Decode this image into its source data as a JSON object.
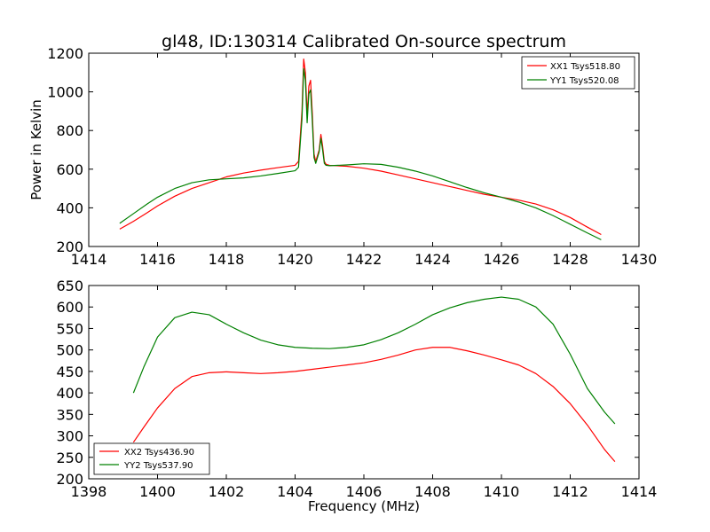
{
  "chart_data": [
    {
      "type": "line",
      "title": "gl48, ID:130314 Calibrated On-source spectrum",
      "xlabel": "",
      "ylabel": "Power in Kelvin",
      "xlim": [
        1414,
        1430
      ],
      "ylim": [
        200,
        1200
      ],
      "xticks": [
        1414,
        1416,
        1418,
        1420,
        1422,
        1424,
        1426,
        1428,
        1430
      ],
      "yticks": [
        200,
        400,
        600,
        800,
        1000,
        1200
      ],
      "grid": false,
      "legend_position": "top-right",
      "series": [
        {
          "name": "XX1 Tsys518.80",
          "color": "#ff0000",
          "x": [
            1414.9,
            1415.3,
            1415.7,
            1416.0,
            1416.5,
            1417.0,
            1417.5,
            1418.0,
            1418.5,
            1419.0,
            1419.5,
            1420.0,
            1420.1,
            1420.2,
            1420.25,
            1420.3,
            1420.35,
            1420.4,
            1420.45,
            1420.5,
            1420.55,
            1420.6,
            1420.7,
            1420.75,
            1420.8,
            1420.85,
            1420.9,
            1421.0,
            1421.5,
            1422.0,
            1422.5,
            1423.0,
            1423.5,
            1424.0,
            1424.5,
            1425.0,
            1425.5,
            1426.0,
            1426.5,
            1427.0,
            1427.5,
            1428.0,
            1428.5,
            1428.9
          ],
          "y": [
            290,
            330,
            375,
            410,
            460,
            500,
            530,
            560,
            580,
            595,
            608,
            620,
            640,
            900,
            1170,
            1100,
            880,
            1030,
            1060,
            890,
            680,
            640,
            700,
            780,
            720,
            640,
            625,
            620,
            615,
            605,
            590,
            570,
            550,
            530,
            510,
            490,
            470,
            455,
            440,
            420,
            390,
            350,
            300,
            262
          ]
        },
        {
          "name": "YY1 Tsys520.08",
          "color": "#008000",
          "x": [
            1414.9,
            1415.3,
            1415.7,
            1416.0,
            1416.5,
            1417.0,
            1417.5,
            1418.0,
            1418.5,
            1419.0,
            1419.5,
            1420.0,
            1420.1,
            1420.2,
            1420.25,
            1420.3,
            1420.35,
            1420.4,
            1420.45,
            1420.5,
            1420.55,
            1420.6,
            1420.7,
            1420.75,
            1420.8,
            1420.85,
            1420.9,
            1421.0,
            1421.5,
            1422.0,
            1422.5,
            1423.0,
            1423.5,
            1424.0,
            1424.5,
            1425.0,
            1425.5,
            1426.0,
            1426.5,
            1427.0,
            1427.5,
            1428.0,
            1428.5,
            1428.9
          ],
          "y": [
            320,
            370,
            420,
            455,
            500,
            530,
            545,
            550,
            555,
            565,
            578,
            592,
            610,
            860,
            1120,
            1060,
            840,
            990,
            1010,
            850,
            660,
            630,
            690,
            760,
            700,
            630,
            620,
            618,
            622,
            628,
            625,
            610,
            590,
            565,
            535,
            505,
            478,
            455,
            430,
            400,
            360,
            315,
            270,
            235
          ]
        }
      ]
    },
    {
      "type": "line",
      "title": "",
      "xlabel": "Frequency (MHz)",
      "ylabel": "",
      "xlim": [
        1398,
        1414
      ],
      "ylim": [
        200,
        650
      ],
      "xticks": [
        1398,
        1400,
        1402,
        1404,
        1406,
        1408,
        1410,
        1412,
        1414
      ],
      "yticks": [
        200,
        250,
        300,
        350,
        400,
        450,
        500,
        550,
        600,
        650
      ],
      "grid": false,
      "legend_position": "bottom-left",
      "series": [
        {
          "name": "XX2 Tsys436.90",
          "color": "#ff0000",
          "x": [
            1399.3,
            1399.6,
            1400.0,
            1400.5,
            1401.0,
            1401.5,
            1402.0,
            1402.5,
            1403.0,
            1403.5,
            1404.0,
            1404.5,
            1405.0,
            1405.5,
            1406.0,
            1406.5,
            1407.0,
            1407.5,
            1408.0,
            1408.5,
            1409.0,
            1409.5,
            1410.0,
            1410.5,
            1411.0,
            1411.5,
            1412.0,
            1412.5,
            1413.0,
            1413.3
          ],
          "y": [
            285,
            320,
            365,
            410,
            438,
            447,
            449,
            447,
            445,
            447,
            450,
            455,
            460,
            465,
            470,
            478,
            488,
            500,
            506,
            506,
            498,
            488,
            477,
            465,
            445,
            415,
            375,
            325,
            268,
            240
          ]
        },
        {
          "name": "YY2 Tsys537.90",
          "color": "#008000",
          "x": [
            1399.3,
            1399.6,
            1400.0,
            1400.5,
            1401.0,
            1401.5,
            1402.0,
            1402.5,
            1403.0,
            1403.5,
            1404.0,
            1404.5,
            1405.0,
            1405.5,
            1406.0,
            1406.5,
            1407.0,
            1407.5,
            1408.0,
            1408.5,
            1409.0,
            1409.5,
            1410.0,
            1410.5,
            1411.0,
            1411.5,
            1412.0,
            1412.5,
            1413.0,
            1413.3
          ],
          "y": [
            400,
            460,
            530,
            575,
            588,
            582,
            560,
            540,
            523,
            512,
            506,
            504,
            503,
            506,
            512,
            524,
            540,
            560,
            582,
            598,
            610,
            618,
            623,
            618,
            600,
            560,
            490,
            410,
            355,
            328
          ]
        }
      ]
    }
  ]
}
